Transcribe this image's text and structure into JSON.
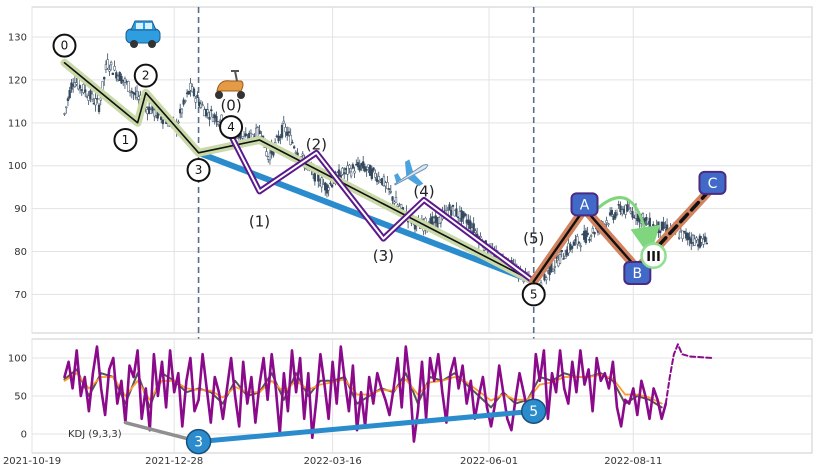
{
  "chart_data": [
    {
      "type": "candlestick",
      "ylim": [
        61,
        137
      ],
      "yticks": [
        70,
        80,
        90,
        100,
        110,
        120,
        130
      ],
      "xlim_days": [
        0,
        384
      ],
      "grid": true,
      "price_path": [
        [
          16,
          112
        ],
        [
          20,
          120
        ],
        [
          25,
          118
        ],
        [
          33,
          114
        ],
        [
          37,
          124
        ],
        [
          45,
          120
        ],
        [
          55,
          114
        ],
        [
          62,
          112
        ],
        [
          71,
          109
        ],
        [
          73,
          112
        ],
        [
          78,
          118
        ],
        [
          85,
          113
        ],
        [
          95,
          110
        ],
        [
          105,
          106
        ],
        [
          113,
          108
        ],
        [
          116,
          102
        ],
        [
          119,
          104
        ],
        [
          124,
          109
        ],
        [
          135,
          100
        ],
        [
          145,
          95
        ],
        [
          152,
          98
        ],
        [
          162,
          100
        ],
        [
          172,
          97
        ],
        [
          181,
          90
        ],
        [
          190,
          86
        ],
        [
          200,
          87
        ],
        [
          206,
          90
        ],
        [
          215,
          87
        ],
        [
          225,
          80
        ],
        [
          235,
          77
        ],
        [
          240,
          75
        ],
        [
          247,
          72
        ],
        [
          250,
          71
        ],
        [
          255,
          76
        ],
        [
          265,
          81
        ],
        [
          280,
          86
        ],
        [
          290,
          90
        ],
        [
          297,
          89
        ],
        [
          305,
          86
        ],
        [
          315,
          85
        ],
        [
          325,
          83
        ],
        [
          331,
          82
        ],
        [
          333,
          84
        ]
      ],
      "waves": {
        "cycle_green": [
          [
            16,
            124
          ],
          [
            52,
            110
          ],
          [
            56,
            117
          ],
          [
            82,
            103
          ],
          [
            112,
            106
          ],
          [
            247,
            73
          ]
        ],
        "cycle_black": [
          [
            16,
            124
          ],
          [
            52,
            110
          ],
          [
            56,
            117
          ],
          [
            82,
            103
          ],
          [
            112,
            106
          ],
          [
            247,
            73
          ]
        ],
        "intermediate_purple": [
          [
            98,
            107
          ],
          [
            112,
            94
          ],
          [
            140,
            103
          ],
          [
            173,
            83
          ],
          [
            193,
            92
          ],
          [
            247,
            73
          ]
        ],
        "blue_impulse": [
          [
            82,
            103
          ],
          [
            247,
            73
          ]
        ],
        "abc_orange": [
          [
            247,
            73
          ],
          [
            272,
            90
          ],
          [
            298,
            76
          ],
          [
            335,
            95
          ]
        ],
        "abc_black": [
          [
            247,
            73
          ],
          [
            272,
            90
          ],
          [
            298,
            76
          ],
          [
            335,
            95
          ]
        ]
      },
      "wave_circles": [
        {
          "text": "0",
          "x": 16,
          "y": 128
        },
        {
          "text": "1",
          "x": 46,
          "y": 106
        },
        {
          "text": "2",
          "x": 56,
          "y": 121
        },
        {
          "text": "3",
          "x": 82,
          "y": 99
        },
        {
          "text": "4",
          "x": 98,
          "y": 109
        },
        {
          "text": "5",
          "x": 247,
          "y": 70
        }
      ],
      "wave_labels": [
        {
          "text": "(0)",
          "x": 98,
          "y": 114
        },
        {
          "text": "(1)",
          "x": 112,
          "y": 87
        },
        {
          "text": "(2)",
          "x": 140,
          "y": 105
        },
        {
          "text": "(3)",
          "x": 173,
          "y": 79
        },
        {
          "text": "(4)",
          "x": 193,
          "y": 94
        },
        {
          "text": "(5)",
          "x": 247,
          "y": 83
        }
      ],
      "abc_labels": [
        {
          "text": "A",
          "x": 272,
          "y": 91
        },
        {
          "text": "B",
          "x": 298,
          "y": 75
        },
        {
          "text": "C",
          "x": 335,
          "y": 96
        }
      ],
      "degree_label": {
        "text": "III",
        "x": 306,
        "y": 79
      },
      "vlines_days": [
        82,
        247
      ]
    },
    {
      "type": "line",
      "indicator_label": "KDJ (9,3,3)",
      "ylim": [
        -25,
        125
      ],
      "yticks": [
        0,
        50,
        100
      ],
      "x_ticks": [
        {
          "day": 0,
          "label": "2021-10-19"
        },
        {
          "day": 70,
          "label": "2021-12-28"
        },
        {
          "day": 148,
          "label": "2022-03-16"
        },
        {
          "day": 225,
          "label": "2022-06-01"
        },
        {
          "day": 296,
          "label": "2022-08-11"
        }
      ],
      "j_path": [
        [
          16,
          75
        ],
        [
          18,
          95
        ],
        [
          20,
          60
        ],
        [
          22,
          110
        ],
        [
          24,
          50
        ],
        [
          26,
          75
        ],
        [
          28,
          30
        ],
        [
          30,
          80
        ],
        [
          32,
          115
        ],
        [
          34,
          60
        ],
        [
          36,
          25
        ],
        [
          38,
          85
        ],
        [
          40,
          100
        ],
        [
          42,
          40
        ],
        [
          44,
          70
        ],
        [
          46,
          15
        ],
        [
          48,
          90
        ],
        [
          50,
          75
        ],
        [
          52,
          110
        ],
        [
          54,
          20
        ],
        [
          56,
          60
        ],
        [
          58,
          5
        ],
        [
          60,
          105
        ],
        [
          62,
          50
        ],
        [
          64,
          95
        ],
        [
          66,
          35
        ],
        [
          68,
          110
        ],
        [
          70,
          55
        ],
        [
          72,
          80
        ],
        [
          74,
          10
        ],
        [
          76,
          70
        ],
        [
          78,
          100
        ],
        [
          80,
          30
        ],
        [
          82,
          45
        ],
        [
          84,
          105
        ],
        [
          86,
          60
        ],
        [
          88,
          15
        ],
        [
          90,
          75
        ],
        [
          92,
          55
        ],
        [
          94,
          20
        ],
        [
          96,
          60
        ],
        [
          98,
          100
        ],
        [
          100,
          50
        ],
        [
          102,
          10
        ],
        [
          104,
          95
        ],
        [
          106,
          40
        ],
        [
          108,
          75
        ],
        [
          110,
          15
        ],
        [
          112,
          65
        ],
        [
          114,
          100
        ],
        [
          116,
          45
        ],
        [
          118,
          105
        ],
        [
          120,
          60
        ],
        [
          122,
          0
        ],
        [
          124,
          80
        ],
        [
          126,
          30
        ],
        [
          128,
          110
        ],
        [
          130,
          55
        ],
        [
          132,
          100
        ],
        [
          134,
          20
        ],
        [
          136,
          80
        ],
        [
          138,
          -5
        ],
        [
          140,
          45
        ],
        [
          142,
          105
        ],
        [
          144,
          65
        ],
        [
          146,
          20
        ],
        [
          148,
          95
        ],
        [
          150,
          40
        ],
        [
          152,
          115
        ],
        [
          154,
          70
        ],
        [
          156,
          30
        ],
        [
          158,
          90
        ],
        [
          160,
          5
        ],
        [
          162,
          55
        ],
        [
          164,
          10
        ],
        [
          166,
          75
        ],
        [
          168,
          40
        ],
        [
          170,
          80
        ],
        [
          172,
          60
        ],
        [
          174,
          45
        ],
        [
          176,
          25
        ],
        [
          178,
          60
        ],
        [
          180,
          100
        ],
        [
          182,
          35
        ],
        [
          184,
          115
        ],
        [
          186,
          70
        ],
        [
          188,
          -10
        ],
        [
          190,
          30
        ],
        [
          192,
          95
        ],
        [
          194,
          20
        ],
        [
          196,
          100
        ],
        [
          198,
          70
        ],
        [
          200,
          105
        ],
        [
          202,
          55
        ],
        [
          204,
          15
        ],
        [
          206,
          80
        ],
        [
          208,
          100
        ],
        [
          210,
          60
        ],
        [
          212,
          90
        ],
        [
          214,
          40
        ],
        [
          216,
          70
        ],
        [
          218,
          20
        ],
        [
          220,
          50
        ],
        [
          222,
          75
        ],
        [
          224,
          35
        ],
        [
          226,
          10
        ],
        [
          228,
          40
        ],
        [
          230,
          90
        ],
        [
          232,
          55
        ],
        [
          234,
          20
        ],
        [
          236,
          5
        ],
        [
          238,
          45
        ],
        [
          240,
          80
        ],
        [
          242,
          55
        ],
        [
          244,
          30
        ],
        [
          246,
          25
        ],
        [
          248,
          105
        ],
        [
          250,
          70
        ],
        [
          252,
          110
        ],
        [
          254,
          20
        ],
        [
          256,
          80
        ],
        [
          258,
          55
        ],
        [
          260,
          110
        ],
        [
          262,
          60
        ],
        [
          264,
          40
        ],
        [
          266,
          95
        ],
        [
          268,
          55
        ],
        [
          270,
          110
        ],
        [
          272,
          65
        ],
        [
          274,
          85
        ],
        [
          276,
          30
        ],
        [
          278,
          100
        ],
        [
          280,
          70
        ],
        [
          282,
          80
        ],
        [
          284,
          60
        ],
        [
          286,
          95
        ],
        [
          288,
          35
        ],
        [
          290,
          10
        ],
        [
          292,
          45
        ],
        [
          294,
          40
        ],
        [
          296,
          60
        ],
        [
          298,
          25
        ],
        [
          300,
          70
        ],
        [
          302,
          50
        ],
        [
          304,
          20
        ],
        [
          306,
          60
        ],
        [
          308,
          45
        ],
        [
          310,
          20
        ],
        [
          312,
          40
        ]
      ],
      "k_path": [
        [
          16,
          72
        ],
        [
          22,
          85
        ],
        [
          28,
          50
        ],
        [
          34,
          80
        ],
        [
          40,
          75
        ],
        [
          46,
          40
        ],
        [
          52,
          80
        ],
        [
          58,
          35
        ],
        [
          64,
          80
        ],
        [
          70,
          70
        ],
        [
          76,
          55
        ],
        [
          82,
          60
        ],
        [
          88,
          55
        ],
        [
          94,
          40
        ],
        [
          100,
          70
        ],
        [
          106,
          50
        ],
        [
          112,
          55
        ],
        [
          118,
          80
        ],
        [
          124,
          45
        ],
        [
          130,
          80
        ],
        [
          136,
          50
        ],
        [
          142,
          70
        ],
        [
          148,
          70
        ],
        [
          154,
          75
        ],
        [
          160,
          40
        ],
        [
          166,
          50
        ],
        [
          172,
          60
        ],
        [
          178,
          55
        ],
        [
          184,
          80
        ],
        [
          190,
          40
        ],
        [
          196,
          75
        ],
        [
          202,
          70
        ],
        [
          208,
          80
        ],
        [
          214,
          65
        ],
        [
          220,
          50
        ],
        [
          226,
          35
        ],
        [
          232,
          55
        ],
        [
          238,
          40
        ],
        [
          244,
          45
        ],
        [
          250,
          75
        ],
        [
          256,
          70
        ],
        [
          262,
          80
        ],
        [
          268,
          75
        ],
        [
          274,
          75
        ],
        [
          280,
          80
        ],
        [
          286,
          70
        ],
        [
          292,
          40
        ],
        [
          298,
          50
        ],
        [
          304,
          45
        ],
        [
          310,
          35
        ]
      ],
      "d_path": [
        [
          16,
          70
        ],
        [
          22,
          80
        ],
        [
          28,
          60
        ],
        [
          34,
          75
        ],
        [
          40,
          75
        ],
        [
          46,
          50
        ],
        [
          52,
          70
        ],
        [
          58,
          45
        ],
        [
          64,
          70
        ],
        [
          70,
          70
        ],
        [
          76,
          60
        ],
        [
          82,
          58
        ],
        [
          88,
          57
        ],
        [
          94,
          48
        ],
        [
          100,
          62
        ],
        [
          106,
          55
        ],
        [
          112,
          55
        ],
        [
          118,
          70
        ],
        [
          124,
          55
        ],
        [
          130,
          70
        ],
        [
          136,
          58
        ],
        [
          142,
          65
        ],
        [
          148,
          68
        ],
        [
          154,
          72
        ],
        [
          160,
          52
        ],
        [
          166,
          52
        ],
        [
          172,
          58
        ],
        [
          178,
          57
        ],
        [
          184,
          72
        ],
        [
          190,
          52
        ],
        [
          196,
          68
        ],
        [
          202,
          70
        ],
        [
          208,
          75
        ],
        [
          214,
          68
        ],
        [
          220,
          56
        ],
        [
          226,
          44
        ],
        [
          232,
          52
        ],
        [
          238,
          45
        ],
        [
          244,
          45
        ],
        [
          250,
          65
        ],
        [
          256,
          68
        ],
        [
          262,
          75
        ],
        [
          268,
          75
        ],
        [
          274,
          75
        ],
        [
          280,
          78
        ],
        [
          286,
          73
        ],
        [
          292,
          52
        ],
        [
          298,
          52
        ],
        [
          304,
          48
        ],
        [
          310,
          40
        ]
      ],
      "forecast_path": [
        [
          312,
          40
        ],
        [
          314,
          75
        ],
        [
          316,
          105
        ],
        [
          318,
          118
        ],
        [
          320,
          105
        ],
        [
          324,
          102
        ],
        [
          335,
          100
        ]
      ],
      "divergence_gray": [
        [
          46,
          15
        ],
        [
          82,
          -10
        ]
      ],
      "divergence_blue": [
        [
          82,
          -10
        ],
        [
          247,
          30
        ]
      ],
      "divergence_circles": [
        {
          "text": "3",
          "x": 82,
          "y": -10
        },
        {
          "text": "5",
          "x": 247,
          "y": 30
        }
      ]
    }
  ],
  "icons": {
    "car": "car-icon",
    "scooter": "scooter-icon",
    "airplane": "airplane-icon"
  },
  "colors": {
    "candle": "#34495e",
    "purple": "#5b1a8c",
    "blue": "#2a8ccc",
    "orange": "#d2825f",
    "green_wave": "#c9d9a8",
    "j_line": "#8b0a8b",
    "k_line": "#555555",
    "d_line": "#ff9a2a",
    "label_box": "#4169c8",
    "vline": "#5a6e8a"
  }
}
